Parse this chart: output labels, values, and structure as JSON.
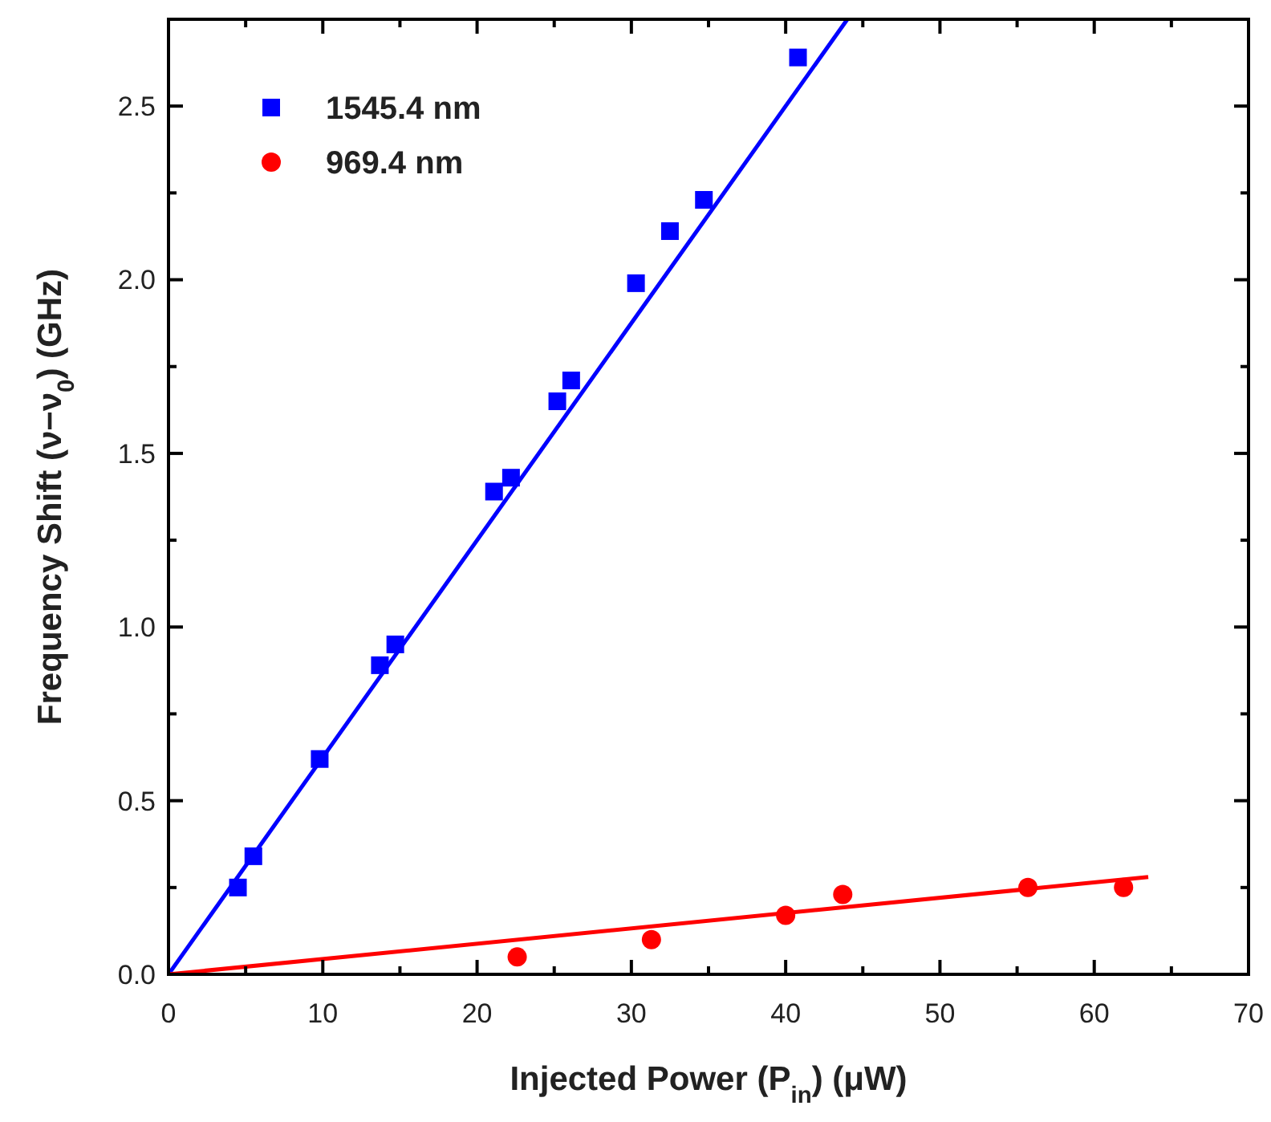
{
  "chart_data": {
    "type": "scatter",
    "xlabel": "Injected Power (P$_{in}$) (μW)",
    "ylabel": "Frequency Shift (ν−ν$_{0}$) (GHz)",
    "xlim": [
      0,
      70
    ],
    "ylim": [
      0,
      2.75
    ],
    "xticks": [
      0,
      10,
      20,
      30,
      40,
      50,
      60,
      70
    ],
    "yticks": [
      {
        "value": 0,
        "label": "0.0"
      },
      {
        "value": 0.5,
        "label": "0.5"
      },
      {
        "value": 1,
        "label": "1.0"
      },
      {
        "value": 1.5,
        "label": "1.5"
      },
      {
        "value": 2,
        "label": "2.0"
      },
      {
        "value": 2.5,
        "label": "2.5"
      }
    ],
    "legend": "top left",
    "grid": false,
    "series": [
      {
        "name": "1545.4 nm",
        "marker": "square",
        "color": "#0000ff",
        "x": [
          4.5,
          5.5,
          9.8,
          13.7,
          14.7,
          21.1,
          22.2,
          25.2,
          26.1,
          30.3,
          32.5,
          34.7,
          40.8
        ],
        "values": [
          0.25,
          0.34,
          0.62,
          0.89,
          0.95,
          1.39,
          1.43,
          1.65,
          1.71,
          1.99,
          2.14,
          2.23,
          2.64
        ]
      },
      {
        "name": "969.4 nm",
        "marker": "circle",
        "color": "#ff0000",
        "x": [
          22.6,
          31.3,
          40.0,
          43.7,
          55.7,
          61.9
        ],
        "values": [
          0.05,
          0.1,
          0.17,
          0.23,
          0.25,
          0.25
        ]
      },
      {
        "type": "line",
        "marker": "none",
        "color": "#0000ff",
        "x": [
          0,
          44
        ],
        "values": [
          0,
          2.75
        ]
      },
      {
        "type": "line",
        "marker": "none",
        "color": "#ff0000",
        "x": [
          0,
          63.5
        ],
        "values": [
          0,
          0.28
        ]
      }
    ]
  }
}
